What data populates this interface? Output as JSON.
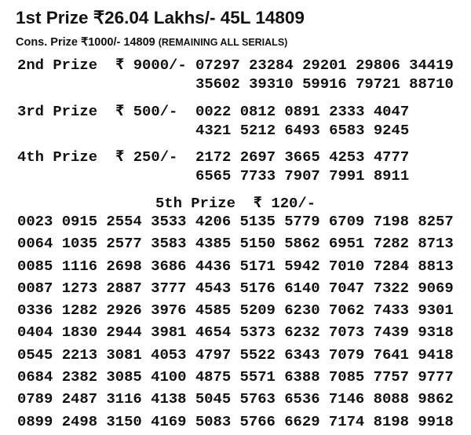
{
  "first_prize": {
    "label": "1st Prize",
    "amount": "₹26.04 Lakhs/-",
    "ticket": "45L 14809"
  },
  "cons_prize": {
    "label": "Cons. Prize",
    "amount": "₹1000/-",
    "number": "14809",
    "note": "(REMAINING ALL SERIALS)"
  },
  "prizes": [
    {
      "label": "2nd Prize",
      "amount": "₹ 9000/-",
      "numbers": [
        "07297",
        "23284",
        "29201",
        "29806",
        "34419",
        "35602",
        "39310",
        "59916",
        "79721",
        "88710"
      ]
    },
    {
      "label": "3rd Prize",
      "amount": "₹ 500/-",
      "numbers": [
        "0022",
        "0812",
        "0891",
        "2333",
        "4047",
        "4321",
        "5212",
        "6493",
        "6583",
        "9245"
      ]
    },
    {
      "label": "4th Prize",
      "amount": "₹ 250/-",
      "numbers": [
        "2172",
        "2697",
        "3665",
        "4253",
        "4777",
        "6565",
        "7733",
        "7907",
        "7991",
        "8911"
      ]
    }
  ],
  "fifth_prize": {
    "label": "5th Prize",
    "amount": "₹ 120/-",
    "rows": [
      [
        "0023",
        "0915",
        "2554",
        "3533",
        "4206",
        "5135",
        "5779",
        "6709",
        "7198",
        "8257"
      ],
      [
        "0064",
        "1035",
        "2577",
        "3583",
        "4385",
        "5150",
        "5862",
        "6951",
        "7282",
        "8713"
      ],
      [
        "0085",
        "1116",
        "2698",
        "3686",
        "4436",
        "5171",
        "5942",
        "7010",
        "7284",
        "8813"
      ],
      [
        "0087",
        "1273",
        "2887",
        "3777",
        "4543",
        "5176",
        "6140",
        "7047",
        "7322",
        "9069"
      ],
      [
        "0336",
        "1282",
        "2926",
        "3976",
        "4585",
        "5209",
        "6230",
        "7062",
        "7433",
        "9301"
      ],
      [
        "0404",
        "1830",
        "2944",
        "3981",
        "4654",
        "5373",
        "6232",
        "7073",
        "7439",
        "9318"
      ],
      [
        "0545",
        "2213",
        "3081",
        "4053",
        "4797",
        "5522",
        "6343",
        "7079",
        "7641",
        "9418"
      ],
      [
        "0684",
        "2382",
        "3085",
        "4100",
        "4875",
        "5571",
        "6388",
        "7085",
        "7757",
        "9777"
      ],
      [
        "0789",
        "2487",
        "3116",
        "4138",
        "5045",
        "5763",
        "6536",
        "7146",
        "8088",
        "9862"
      ],
      [
        "0899",
        "2498",
        "3150",
        "4169",
        "5083",
        "5766",
        "6629",
        "7174",
        "8198",
        "9918"
      ]
    ]
  }
}
